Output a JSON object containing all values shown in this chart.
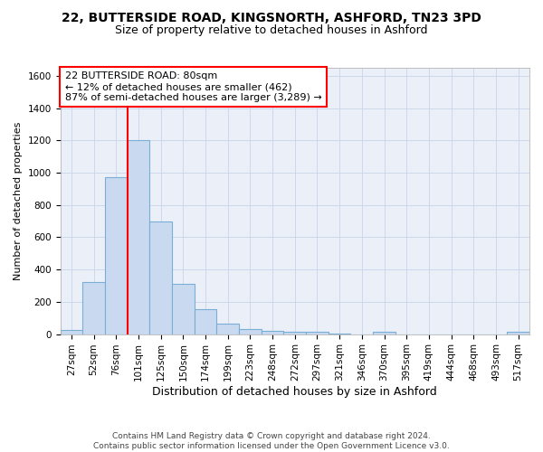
{
  "title_line1": "22, BUTTERSIDE ROAD, KINGSNORTH, ASHFORD, TN23 3PD",
  "title_line2": "Size of property relative to detached houses in Ashford",
  "xlabel": "Distribution of detached houses by size in Ashford",
  "ylabel": "Number of detached properties",
  "categories": [
    "27sqm",
    "52sqm",
    "76sqm",
    "101sqm",
    "125sqm",
    "150sqm",
    "174sqm",
    "199sqm",
    "223sqm",
    "248sqm",
    "272sqm",
    "297sqm",
    "321sqm",
    "346sqm",
    "370sqm",
    "395sqm",
    "419sqm",
    "444sqm",
    "468sqm",
    "493sqm",
    "517sqm"
  ],
  "values": [
    25,
    320,
    975,
    1200,
    700,
    310,
    155,
    65,
    30,
    20,
    15,
    15,
    5,
    0,
    15,
    0,
    0,
    0,
    0,
    0,
    15
  ],
  "bar_color": "#c9daf0",
  "bar_edge_color": "#7baed4",
  "bar_linewidth": 0.8,
  "red_line_index": 2.5,
  "annotation_text": "22 BUTTERSIDE ROAD: 80sqm\n← 12% of detached houses are smaller (462)\n87% of semi-detached houses are larger (3,289) →",
  "annotation_box_color": "white",
  "annotation_box_edge": "red",
  "ylim": [
    0,
    1650
  ],
  "yticks": [
    0,
    200,
    400,
    600,
    800,
    1000,
    1200,
    1400,
    1600
  ],
  "grid_color": "#c8d4e8",
  "background_color": "#eaeff8",
  "footnote": "Contains HM Land Registry data © Crown copyright and database right 2024.\nContains public sector information licensed under the Open Government Licence v3.0.",
  "title_fontsize": 10,
  "subtitle_fontsize": 9,
  "xlabel_fontsize": 9,
  "ylabel_fontsize": 8,
  "tick_fontsize": 7.5,
  "annot_fontsize": 8,
  "footnote_fontsize": 6.5
}
